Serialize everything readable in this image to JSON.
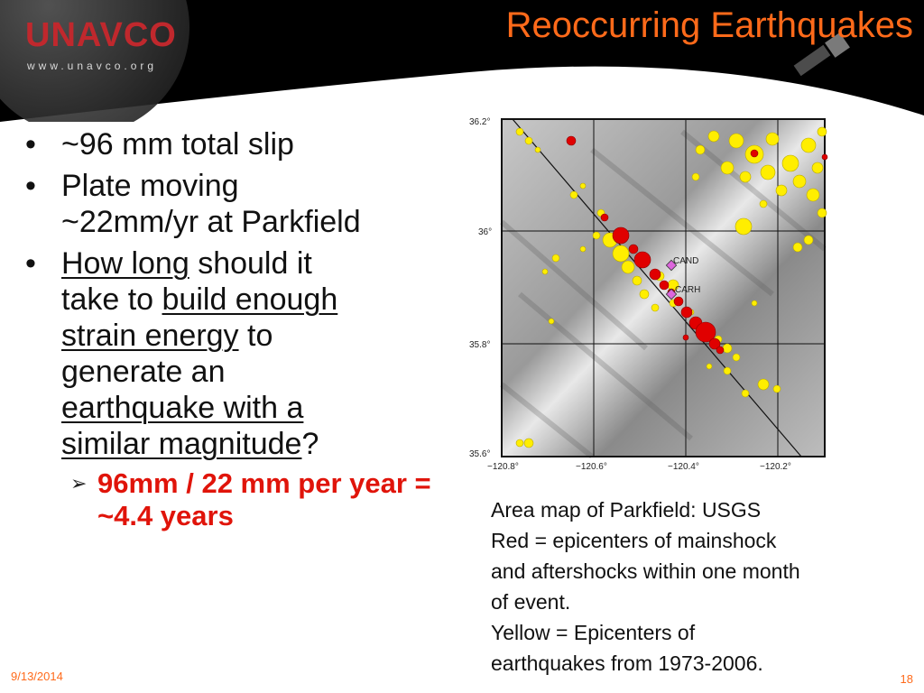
{
  "logo": {
    "name": "UNAVCO",
    "url": "www.unavco.org"
  },
  "title": "Reoccurring Earthquakes",
  "bullets": {
    "b1": "~96 mm total slip",
    "b2_line1": "Plate moving",
    "b2_line2": "~22mm/yr at Parkfield",
    "b3": {
      "how_long": "How long",
      "should": " should it",
      "take_to": "take to ",
      "build": "build enough",
      "strain": "strain energy",
      "to": " to",
      "generate": "generate an",
      "eq": "earthquake with a",
      "similar": "similar magnitude",
      "q": "?"
    },
    "sub": "96mm / 22 mm per year = ~4.4 years"
  },
  "map": {
    "lat_labels": [
      "36.2°",
      "36°",
      "35.8°",
      "35.6°"
    ],
    "lon_labels": [
      "−120.8°",
      "−120.6°",
      "−120.4°",
      "−120.2°"
    ],
    "stations": [
      "CAND",
      "CARH"
    ],
    "colors": {
      "mainshock": "#e00000",
      "historic": "#ffee00",
      "station": "#dd66dd"
    }
  },
  "caption": {
    "l1": "Area map of Parkfield: USGS",
    "l2": "Red = epicenters of mainshock",
    "l3": "and aftershocks within one month",
    "l4": "of event.",
    "l5": "Yellow =  Epicenters of",
    "l6": "earthquakes from 1973-2006."
  },
  "footer": {
    "date": "9/13/2014",
    "page": "18"
  },
  "theme": {
    "accent": "#ff6a1a",
    "logo_red": "#c0282d",
    "sub_red": "#e0140a"
  }
}
